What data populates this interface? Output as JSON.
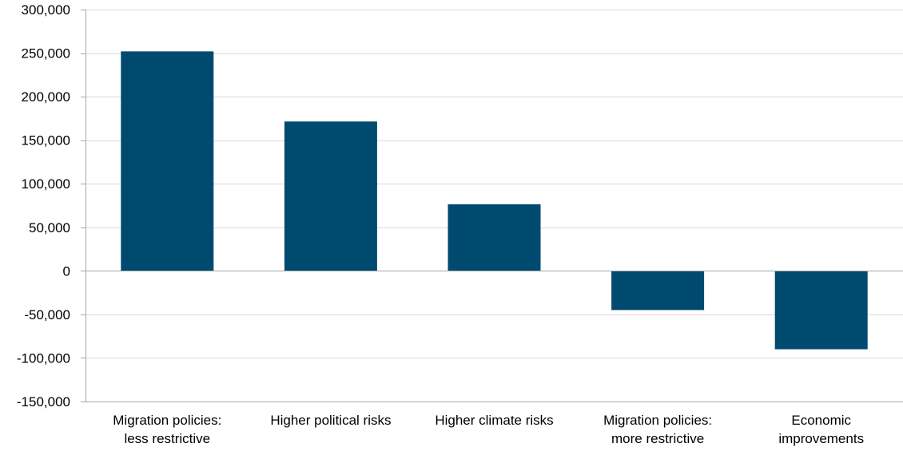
{
  "chart_data": {
    "type": "bar",
    "title": "",
    "xlabel": "",
    "ylabel": "",
    "categories": [
      [
        "Migration policies:",
        "less restrictive"
      ],
      [
        "Higher political risks"
      ],
      [
        "Higher climate risks"
      ],
      [
        "Migration policies:",
        "more restrictive"
      ],
      [
        "Economic",
        "improvements"
      ]
    ],
    "values": [
      252000,
      171500,
      76500,
      -45000,
      -90000
    ],
    "ylim": [
      -150000,
      300000
    ],
    "yticks": [
      300000,
      250000,
      200000,
      150000,
      100000,
      50000,
      0,
      -50000,
      -100000,
      -150000
    ],
    "ytick_labels": [
      "300,000",
      "250,000",
      "200,000",
      "150,000",
      "100,000",
      "50,000",
      "0",
      "-50,000",
      "-100,000",
      "-150,000"
    ],
    "grid": true,
    "bar_color": "#004a70",
    "grid_color": "#d9d9d9",
    "axis_color": "#a6a6a6"
  }
}
